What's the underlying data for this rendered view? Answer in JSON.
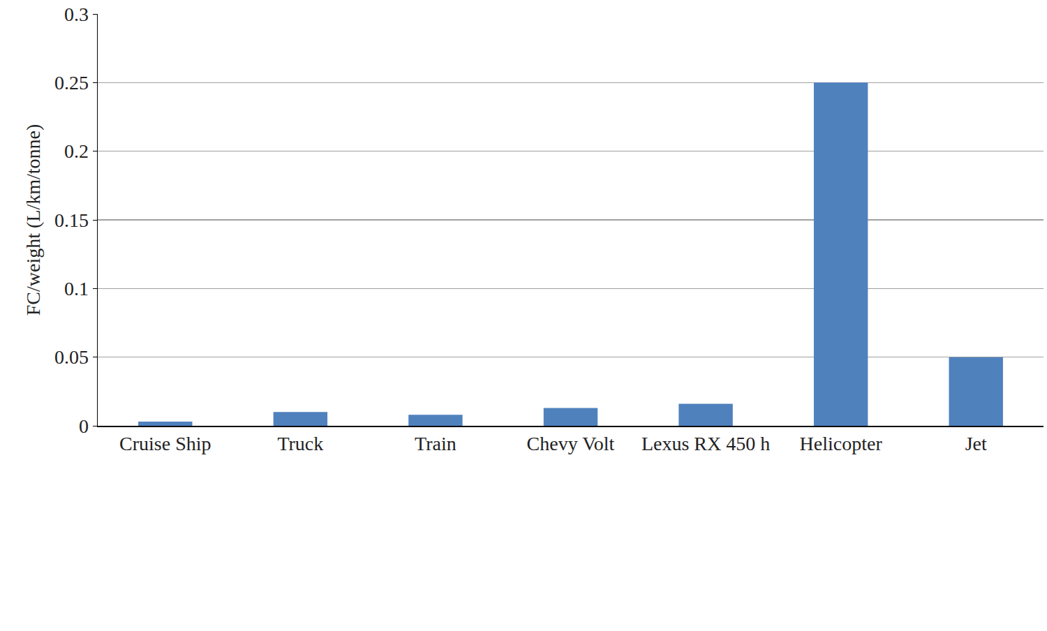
{
  "chart_data": {
    "type": "bar",
    "y_label": "FC/weight (L/km/tonne)",
    "categories": [
      "Cruise Ship",
      "Truck",
      "Train",
      "Chevy Volt",
      "Lexus RX 450 h",
      "Helicopter",
      "Jet"
    ],
    "values": [
      0.003,
      0.01,
      0.008,
      0.013,
      0.016,
      0.25,
      0.05
    ],
    "color": "#4f81bd",
    "ylim": [
      0,
      0.3
    ],
    "yticks": [
      0,
      0.05,
      0.1,
      0.15,
      0.2,
      0.25,
      0.3
    ],
    "grid": true
  }
}
